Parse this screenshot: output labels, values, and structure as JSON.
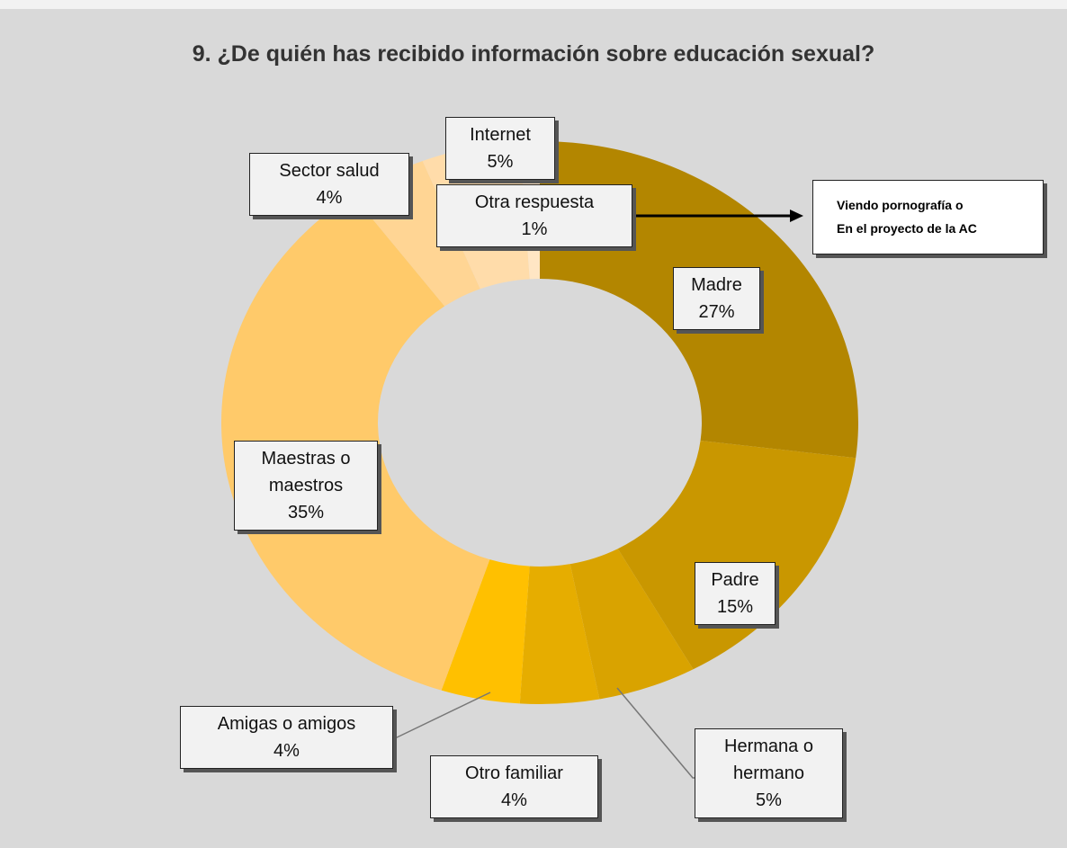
{
  "chart_data": {
    "type": "donut",
    "title": "9. ¿De quién has recibido información sobre educación sexual?",
    "categories": [
      "Madre",
      "Padre",
      "Hermana o hermano",
      "Otro familiar",
      "Amigas o amigos",
      "Maestras o maestros",
      "Sector salud",
      "Internet",
      "Otra respuesta"
    ],
    "values": [
      27,
      15,
      5,
      4,
      4,
      35,
      4,
      5,
      1
    ],
    "value_labels": [
      "27%",
      "15%",
      "5%",
      "4%",
      "4%",
      "35%",
      "4%",
      "5%",
      "1%"
    ],
    "colors": [
      "#b38600",
      "#c99700",
      "#d9a300",
      "#e6ad00",
      "#ffc000",
      "#ffca6a",
      "#ffd594",
      "#ffdcaa",
      "#ffe6c4"
    ],
    "annotation": [
      "Viendo pornografía o",
      "En el proyecto de la AC"
    ]
  }
}
